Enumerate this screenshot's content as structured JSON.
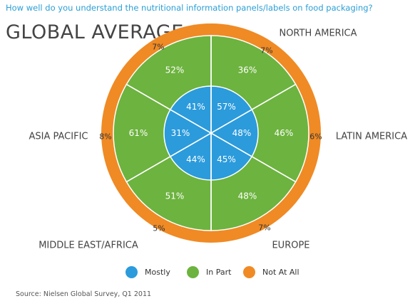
{
  "question": "How well do you understand the nutritional information panels/labels on food packaging?",
  "source": "Source: Nielsen Global Survey, Q1 2011",
  "chart_data": {
    "type": "polar-area",
    "title": "GLOBAL AVERAGE",
    "categories": [
      "NORTH AMERICA",
      "LATIN AMERICA",
      "EUROPE",
      "MIDDLE EAST/AFRICA",
      "ASIA PACIFIC",
      "GLOBAL AVERAGE"
    ],
    "series": [
      {
        "name": "Mostly",
        "color": "#2b9bdc",
        "values": [
          57,
          48,
          45,
          44,
          31,
          41
        ]
      },
      {
        "name": "In Part",
        "color": "#6db33f",
        "values": [
          36,
          46,
          48,
          51,
          61,
          52
        ]
      },
      {
        "name": "Not At All",
        "color": "#f08a24",
        "values": [
          7,
          6,
          7,
          5,
          8,
          7
        ]
      }
    ],
    "labels": {
      "Mostly": [
        "57%",
        "48%",
        "45%",
        "44%",
        "31%",
        "41%"
      ],
      "In Part": [
        "36%",
        "46%",
        "48%",
        "51%",
        "61%",
        "52%"
      ],
      "Not At All": [
        "7%",
        "6%",
        "7%",
        "5%",
        "8%",
        "7%"
      ]
    },
    "legend_position": "bottom-center"
  }
}
